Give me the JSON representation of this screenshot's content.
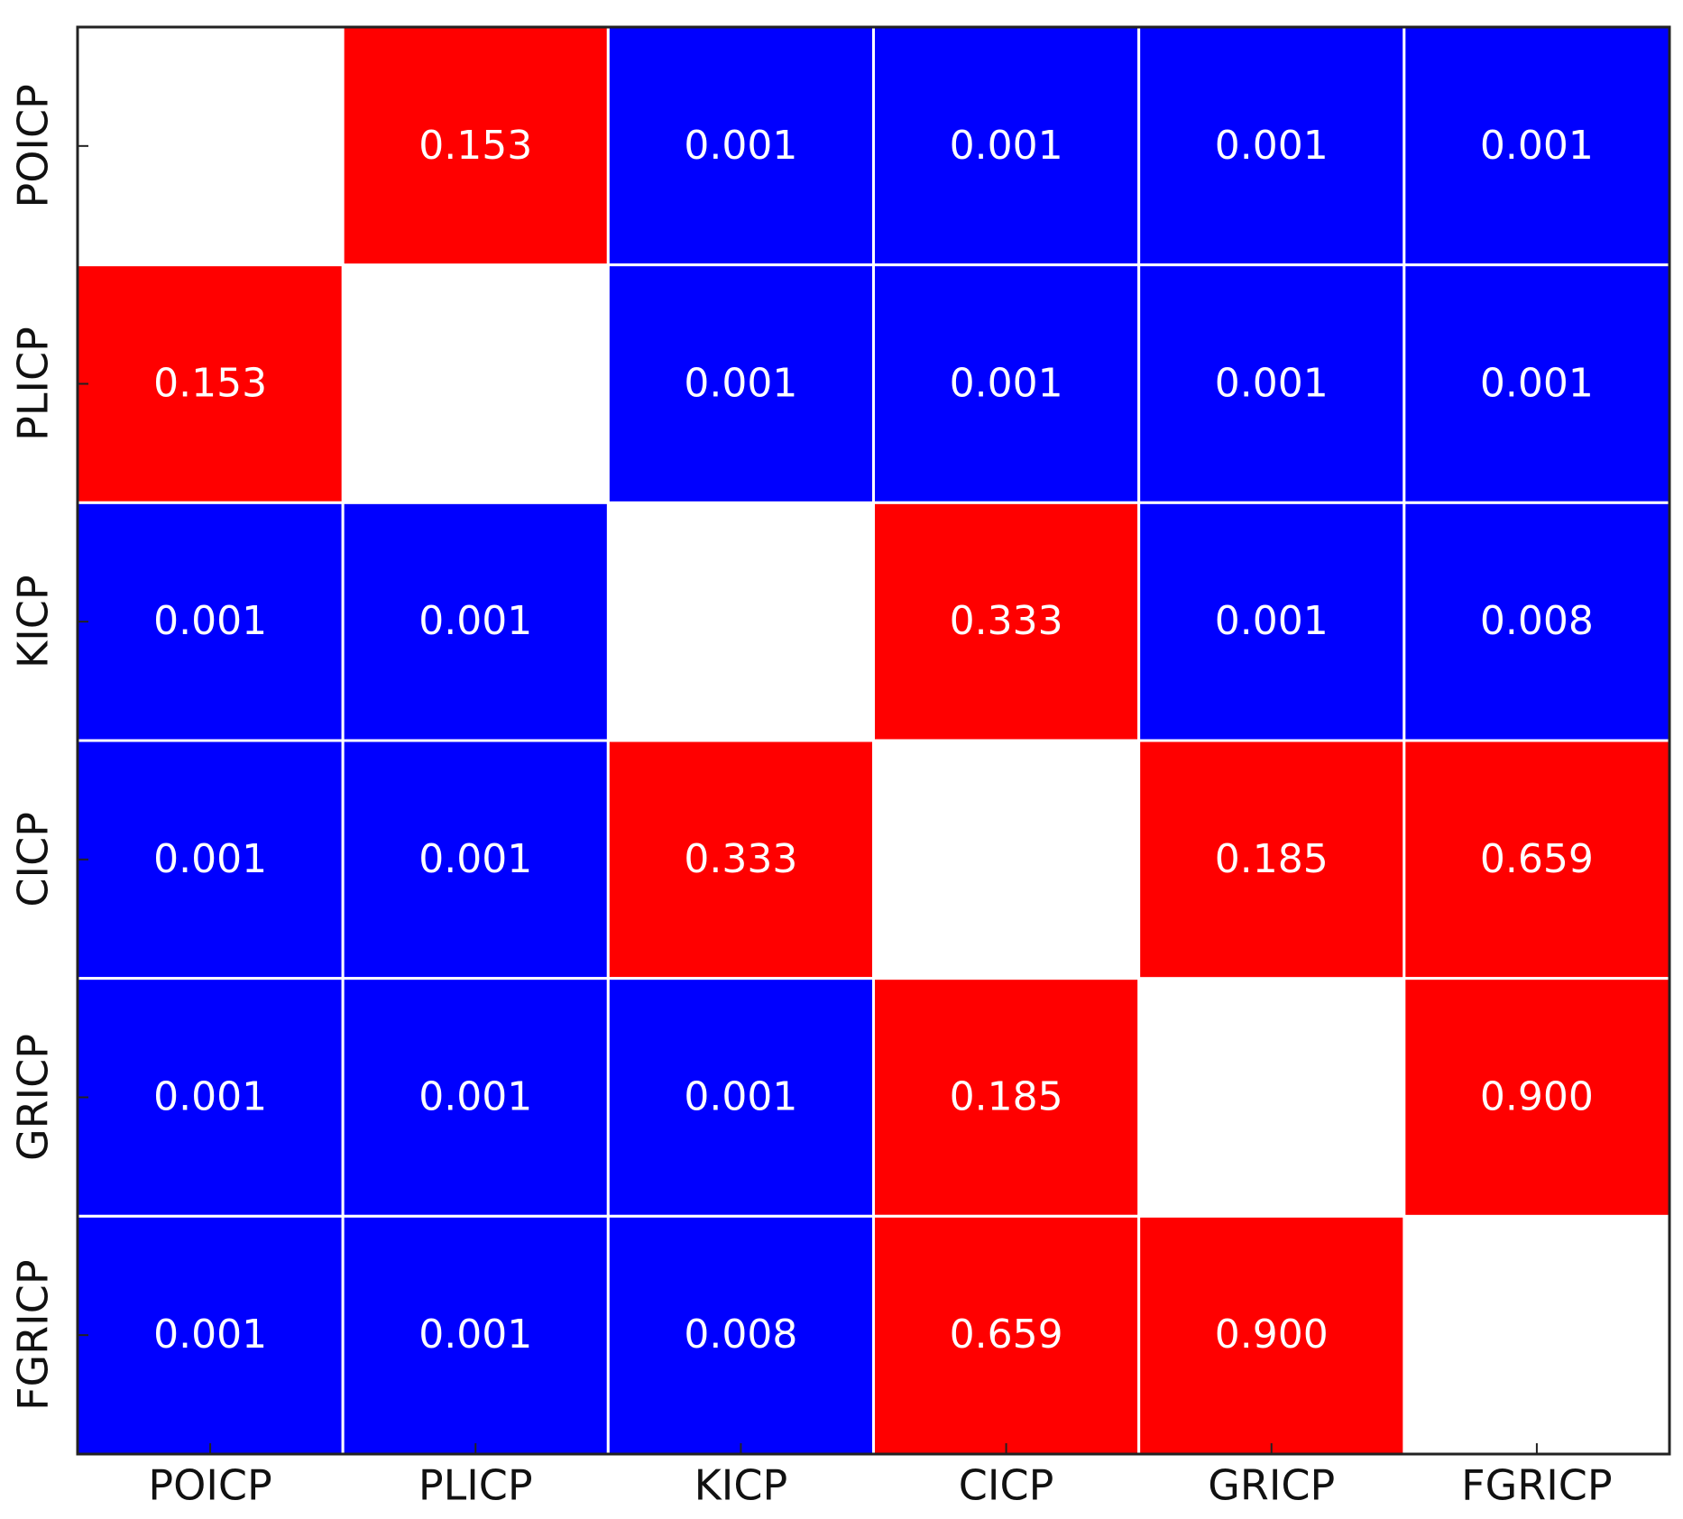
{
  "chart_data": {
    "type": "heatmap",
    "x_categories": [
      "POICP",
      "PLICP",
      "KICP",
      "CICP",
      "GRICP",
      "FGRICP"
    ],
    "y_categories": [
      "POICP",
      "PLICP",
      "KICP",
      "CICP",
      "GRICP",
      "FGRICP"
    ],
    "values": [
      [
        null,
        0.153,
        0.001,
        0.001,
        0.001,
        0.001
      ],
      [
        0.153,
        null,
        0.001,
        0.001,
        0.001,
        0.001
      ],
      [
        0.001,
        0.001,
        null,
        0.333,
        0.001,
        0.008
      ],
      [
        0.001,
        0.001,
        0.333,
        null,
        0.185,
        0.659
      ],
      [
        0.001,
        0.001,
        0.001,
        0.185,
        null,
        0.9
      ],
      [
        0.001,
        0.001,
        0.008,
        0.659,
        0.9,
        null
      ]
    ],
    "value_labels": [
      [
        null,
        "0.153",
        "0.001",
        "0.001",
        "0.001",
        "0.001"
      ],
      [
        "0.153",
        null,
        "0.001",
        "0.001",
        "0.001",
        "0.001"
      ],
      [
        "0.001",
        "0.001",
        null,
        "0.333",
        "0.001",
        "0.008"
      ],
      [
        "0.001",
        "0.001",
        "0.333",
        null,
        "0.185",
        "0.659"
      ],
      [
        "0.001",
        "0.001",
        "0.001",
        "0.185",
        null,
        "0.900"
      ],
      [
        "0.001",
        "0.001",
        "0.008",
        "0.659",
        "0.900",
        null
      ]
    ],
    "colors": [
      [
        null,
        "#ff0000",
        "#0000ff",
        "#0000ff",
        "#0000ff",
        "#0000ff"
      ],
      [
        "#ff0000",
        null,
        "#0000ff",
        "#0000ff",
        "#0000ff",
        "#0000ff"
      ],
      [
        "#0000ff",
        "#0000ff",
        null,
        "#ff0000",
        "#0000ff",
        "#0000ff"
      ],
      [
        "#0000ff",
        "#0000ff",
        "#ff0000",
        null,
        "#ff0000",
        "#ff0000"
      ],
      [
        "#0000ff",
        "#0000ff",
        "#0000ff",
        "#ff0000",
        null,
        "#ff0000"
      ],
      [
        "#0000ff",
        "#0000ff",
        "#0000ff",
        "#ff0000",
        "#ff0000",
        null
      ]
    ]
  }
}
